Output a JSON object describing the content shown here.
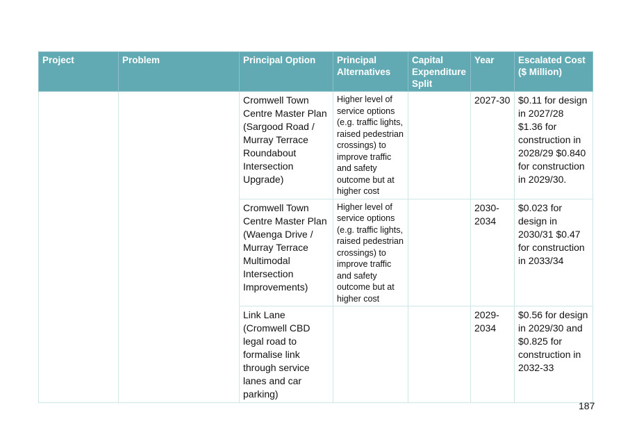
{
  "table": {
    "headers": [
      "Project",
      "Problem",
      "Principal Option",
      "Principal Alternatives",
      "Capital Expenditure Split",
      "Year",
      "Escalated Cost ($ Million)"
    ],
    "rows": [
      {
        "project": "",
        "problem": "",
        "option": "Cromwell Town Centre Master Plan (Sargood Road / Murray Terrace Roundabout Intersection Upgrade)",
        "alternatives": "Higher level of service options (e.g. traffic lights, raised pedestrian crossings) to improve traffic and safety outcome but at higher cost",
        "split": "",
        "year": "2027-30",
        "cost": "$0.11 for design in 2027/28 $1.36 for construction in 2028/29 $0.840 for construction in 2029/30."
      },
      {
        "option": "Cromwell Town Centre Master Plan (Waenga Drive / Murray Terrace Multimodal Intersection Improvements)",
        "alternatives": "Higher level of service options (e.g. traffic lights, raised pedestrian crossings) to improve traffic and safety outcome but at higher cost",
        "split": "",
        "year": "2030-2034",
        "cost": "$0.023 for design in 2030/31 $0.47 for construction in 2033/34"
      },
      {
        "option": "Link Lane (Cromwell CBD legal road to formalise link through service lanes and car parking)",
        "alternatives": "",
        "split": "",
        "year": "2029-2034",
        "cost": "$0.56 for design in 2029/30 and $0.825 for construction in 2032-33"
      }
    ]
  },
  "page_number": "187"
}
